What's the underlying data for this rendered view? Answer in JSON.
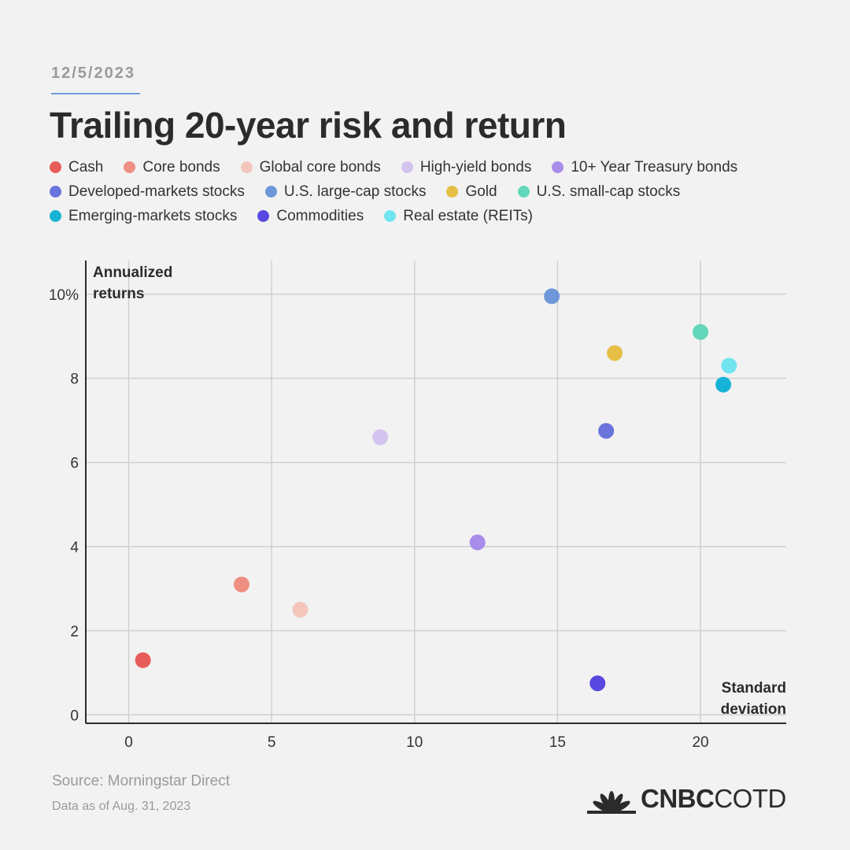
{
  "header": {
    "date": "12/5/2023",
    "title": "Trailing 20-year risk and return"
  },
  "legend": {
    "rows": [
      [
        {
          "label": "Cash",
          "color": "#e85c5a"
        },
        {
          "label": "Core bonds",
          "color": "#ee8f82"
        },
        {
          "label": "Global core bonds",
          "color": "#f4c6bb"
        },
        {
          "label": "High-yield bonds",
          "color": "#d2c3ef"
        },
        {
          "label": "10+ Year Treasury bonds",
          "color": "#a98deb"
        }
      ],
      [
        {
          "label": "Developed-markets stocks",
          "color": "#6a74dc"
        },
        {
          "label": "U.S. large-cap stocks",
          "color": "#6d97d8"
        },
        {
          "label": "Gold",
          "color": "#e6bf47"
        },
        {
          "label": "U.S. small-cap stocks",
          "color": "#62d7ba"
        }
      ],
      [
        {
          "label": "Emerging-markets stocks",
          "color": "#17b3d6"
        },
        {
          "label": "Commodities",
          "color": "#5847e0"
        },
        {
          "label": "Real estate (REITs)",
          "color": "#72e4ef"
        }
      ]
    ]
  },
  "chart_data": {
    "type": "scatter",
    "title": "Trailing 20-year risk and return",
    "xlabel": "Standard deviation",
    "ylabel": "Annualized returns",
    "xlim": [
      -1.5,
      23
    ],
    "ylim": [
      -0.2,
      10.8
    ],
    "x_ticks": [
      0,
      5,
      10,
      15,
      20
    ],
    "x_tick_labels": [
      "0",
      "5",
      "10",
      "15",
      "20"
    ],
    "y_ticks": [
      0,
      2,
      4,
      6,
      8,
      10
    ],
    "y_tick_labels": [
      "0",
      "2",
      "4",
      "6",
      "8",
      "10%"
    ],
    "grid": true,
    "legend_placement": "top",
    "series": [
      {
        "name": "Cash",
        "color": "#e85c5a",
        "x": 0.5,
        "y": 1.3
      },
      {
        "name": "Core bonds",
        "color": "#ee8f82",
        "x": 3.95,
        "y": 3.1
      },
      {
        "name": "Global core bonds",
        "color": "#f4c6bb",
        "x": 6.0,
        "y": 2.5
      },
      {
        "name": "High-yield bonds",
        "color": "#d2c3ef",
        "x": 8.8,
        "y": 6.6
      },
      {
        "name": "10+ Year Treasury bonds",
        "color": "#a98deb",
        "x": 12.2,
        "y": 4.1
      },
      {
        "name": "Developed-markets stocks",
        "color": "#6a74dc",
        "x": 16.7,
        "y": 6.75
      },
      {
        "name": "U.S. large-cap stocks",
        "color": "#6d97d8",
        "x": 14.8,
        "y": 9.95
      },
      {
        "name": "Gold",
        "color": "#e6bf47",
        "x": 17.0,
        "y": 8.6
      },
      {
        "name": "U.S. small-cap stocks",
        "color": "#62d7ba",
        "x": 20.0,
        "y": 9.1
      },
      {
        "name": "Emerging-markets stocks",
        "color": "#17b3d6",
        "x": 20.8,
        "y": 7.85
      },
      {
        "name": "Commodities",
        "color": "#5847e0",
        "x": 16.4,
        "y": 0.75
      },
      {
        "name": "Real estate (REITs)",
        "color": "#72e4ef",
        "x": 21.0,
        "y": 8.3
      }
    ]
  },
  "footer": {
    "source": "Source: Morningstar Direct",
    "as_of": "Data as of Aug. 31, 2023",
    "brand_bold": "CNBC",
    "brand_light": "COTD"
  }
}
